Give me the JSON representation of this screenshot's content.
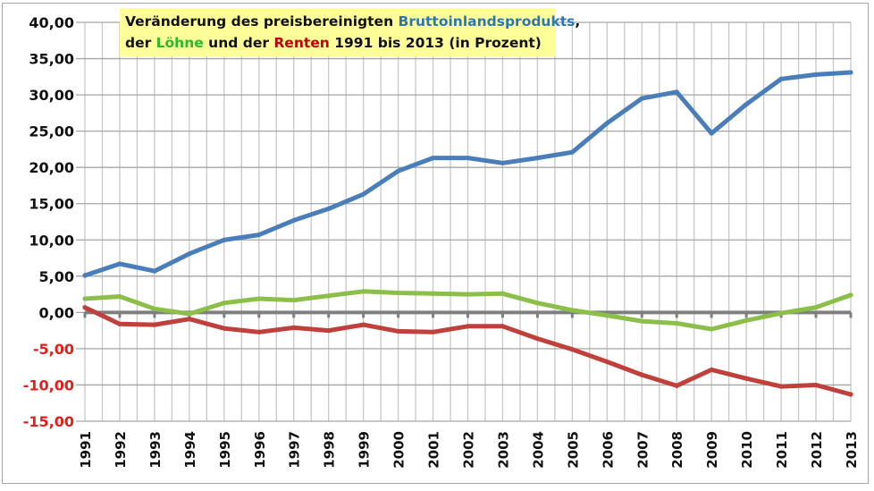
{
  "chart_data": {
    "type": "line",
    "title_parts": {
      "line1_prefix": "Veränderung des preisbereinigten ",
      "line1_blue": "Bruttoinlandsprodukts",
      "line1_suffix": ",",
      "line2_prefix": "der ",
      "line2_green": "Löhne",
      "line2_mid": " und der ",
      "line2_red": "Renten",
      "line2_suffix": " 1991 bis 2013 (in Prozent)"
    },
    "xlabel": "",
    "ylabel": "",
    "ylim": [
      -15,
      40
    ],
    "grid": true,
    "legend": "none",
    "y_ticks": [
      "40,00",
      "35,00",
      "30,00",
      "25,00",
      "20,00",
      "15,00",
      "10,00",
      "5,00",
      "0,00",
      "-5,00",
      "-10,00",
      "-15,00"
    ],
    "y_tick_values": [
      40,
      35,
      30,
      25,
      20,
      15,
      10,
      5,
      0,
      -5,
      -10,
      -15
    ],
    "negative_tick_color": "#e0201a",
    "categories": [
      "1991",
      "1992",
      "1993",
      "1994",
      "1995",
      "1996",
      "1997",
      "1998",
      "1999",
      "2000",
      "2001",
      "2002",
      "2003",
      "2004",
      "2005",
      "2006",
      "2007",
      "2008",
      "2009",
      "2010",
      "2011",
      "2012",
      "2013"
    ],
    "series": [
      {
        "name": "Bruttoinlandsprodukt",
        "color": "#4a7ebb",
        "values": [
          5.1,
          6.7,
          5.7,
          8.1,
          10.0,
          10.7,
          12.7,
          14.3,
          16.3,
          19.5,
          21.3,
          21.3,
          20.6,
          21.3,
          22.1,
          26.1,
          29.5,
          30.4,
          24.7,
          28.7,
          32.2,
          32.8,
          33.1
        ]
      },
      {
        "name": "Löhne",
        "color": "#8cbf4a",
        "values": [
          1.9,
          2.2,
          0.5,
          -0.2,
          1.3,
          1.9,
          1.7,
          2.3,
          2.9,
          2.7,
          2.6,
          2.5,
          2.6,
          1.3,
          0.3,
          -0.4,
          -1.2,
          -1.5,
          -2.3,
          -1.1,
          -0.1,
          0.7,
          2.4
        ]
      },
      {
        "name": "Renten",
        "color": "#c0403c",
        "values": [
          0.7,
          -1.6,
          -1.7,
          -0.9,
          -2.2,
          -2.7,
          -2.1,
          -2.5,
          -1.7,
          -2.6,
          -2.7,
          -1.9,
          -1.9,
          -3.6,
          -5.1,
          -6.8,
          -8.6,
          -10.1,
          -7.9,
          -9.1,
          -10.2,
          -10.0,
          -11.3
        ]
      }
    ]
  }
}
